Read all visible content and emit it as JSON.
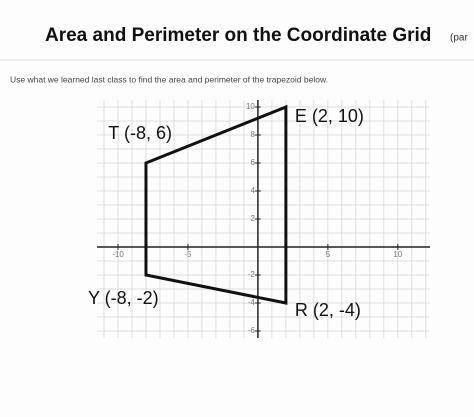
{
  "chart_data": {
    "type": "polygon",
    "title": "Area and Perimeter on the Coordinate Grid",
    "title_tail": "(par",
    "subtitle": "Use what we learned last class to find the area and perimeter of the trapezoid below.",
    "x": [
      2,
      -8,
      -8,
      2
    ],
    "y": [
      10,
      6,
      -2,
      -4
    ],
    "point_labels": [
      "E (2, 10)",
      "T (-8, 6)",
      "Y (-8, -2)",
      "R (2, -4)"
    ],
    "color": "#111111",
    "xlim": [
      -11.5,
      12.3
    ],
    "ylim": [
      -6.5,
      10.5
    ],
    "xticks": [
      -10,
      -5,
      5,
      10
    ],
    "yticks": [
      10,
      8,
      6,
      4,
      2,
      -2,
      -4,
      -6
    ],
    "grid": true,
    "minor_grid_step": 1
  }
}
